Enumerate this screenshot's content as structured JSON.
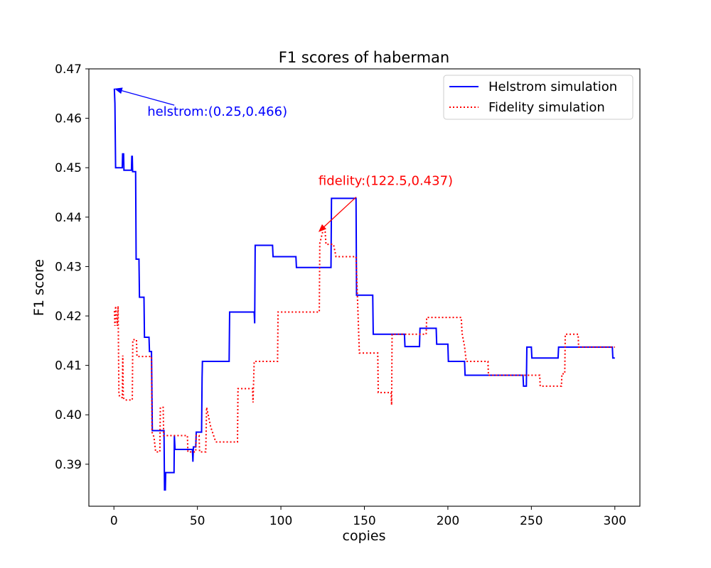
{
  "chart_data": {
    "type": "line",
    "title": "F1 scores of haberman",
    "xlabel": "copies",
    "ylabel": "F1 score",
    "xlim": [
      -15,
      315
    ],
    "ylim": [
      0.3815,
      0.47
    ],
    "xticks": [
      0,
      50,
      100,
      150,
      200,
      250,
      300
    ],
    "yticks": [
      0.39,
      0.4,
      0.41,
      0.42,
      0.43,
      0.44,
      0.45,
      0.46,
      0.47
    ],
    "xtick_labels": [
      "0",
      "50",
      "100",
      "150",
      "200",
      "250",
      "300"
    ],
    "ytick_labels": [
      "0.39",
      "0.40",
      "0.41",
      "0.42",
      "0.43",
      "0.44",
      "0.45",
      "0.46",
      "0.47"
    ],
    "grid": false,
    "legend_position": "top-right",
    "series": [
      {
        "name": "Helstrom simulation",
        "color": "#0000ff",
        "style": "solid",
        "points": [
          [
            0.25,
            0.466
          ],
          [
            0.6,
            0.463
          ],
          [
            1,
            0.45
          ],
          [
            5,
            0.45
          ],
          [
            5.2,
            0.4528
          ],
          [
            5.8,
            0.4528
          ],
          [
            6,
            0.4495
          ],
          [
            10.5,
            0.4495
          ],
          [
            10.7,
            0.4523
          ],
          [
            11,
            0.4523
          ],
          [
            11.2,
            0.4492
          ],
          [
            13,
            0.4492
          ],
          [
            13.3,
            0.4315
          ],
          [
            15,
            0.4315
          ],
          [
            15.3,
            0.4238
          ],
          [
            18,
            0.4238
          ],
          [
            18.3,
            0.4157
          ],
          [
            21,
            0.4157
          ],
          [
            21.3,
            0.4128
          ],
          [
            22.5,
            0.4128
          ],
          [
            23,
            0.3968
          ],
          [
            30,
            0.3968
          ],
          [
            30.3,
            0.3848
          ],
          [
            30.8,
            0.3848
          ],
          [
            31,
            0.3883
          ],
          [
            36,
            0.3883
          ],
          [
            36.2,
            0.3958
          ],
          [
            36.6,
            0.393
          ],
          [
            47,
            0.393
          ],
          [
            47.3,
            0.3905
          ],
          [
            47.6,
            0.3935
          ],
          [
            49,
            0.3935
          ],
          [
            49.3,
            0.3965
          ],
          [
            52.5,
            0.3965
          ],
          [
            52.8,
            0.4075
          ],
          [
            53,
            0.4108
          ],
          [
            69,
            0.4108
          ],
          [
            69.3,
            0.4208
          ],
          [
            84,
            0.4208
          ],
          [
            84.3,
            0.4185
          ],
          [
            84.6,
            0.4343
          ],
          [
            95,
            0.4343
          ],
          [
            95.3,
            0.432
          ],
          [
            109,
            0.432
          ],
          [
            109.3,
            0.4298
          ],
          [
            130,
            0.4298
          ],
          [
            130.3,
            0.4438
          ],
          [
            145,
            0.4438
          ],
          [
            145.3,
            0.4242
          ],
          [
            155,
            0.4242
          ],
          [
            155.3,
            0.4163
          ],
          [
            174,
            0.4163
          ],
          [
            174.3,
            0.4138
          ],
          [
            183,
            0.4138
          ],
          [
            183.3,
            0.4175
          ],
          [
            193,
            0.4175
          ],
          [
            193.3,
            0.4143
          ],
          [
            200,
            0.4143
          ],
          [
            200.3,
            0.4108
          ],
          [
            210,
            0.4108
          ],
          [
            210.3,
            0.408
          ],
          [
            245,
            0.408
          ],
          [
            245.3,
            0.4058
          ],
          [
            247,
            0.4058
          ],
          [
            247.3,
            0.4137
          ],
          [
            250,
            0.4137
          ],
          [
            250.3,
            0.4115
          ],
          [
            266,
            0.4115
          ],
          [
            266.3,
            0.4137
          ],
          [
            298.5,
            0.4137
          ],
          [
            298.8,
            0.4115
          ],
          [
            300,
            0.4115
          ]
        ]
      },
      {
        "name": "Fidelity simulation",
        "color": "#ff0000",
        "style": "dotted",
        "points": [
          [
            0.3,
            0.421
          ],
          [
            0.6,
            0.418
          ],
          [
            1,
            0.422
          ],
          [
            2,
            0.418
          ],
          [
            2.5,
            0.422
          ],
          [
            3,
            0.404
          ],
          [
            4,
            0.4035
          ],
          [
            5,
            0.4035
          ],
          [
            5.3,
            0.412
          ],
          [
            5.6,
            0.4035
          ],
          [
            6.5,
            0.403
          ],
          [
            11,
            0.403
          ],
          [
            11.3,
            0.4152
          ],
          [
            13.5,
            0.4152
          ],
          [
            13.8,
            0.4118
          ],
          [
            22.5,
            0.4118
          ],
          [
            22.8,
            0.3965
          ],
          [
            24,
            0.3955
          ],
          [
            25,
            0.3925
          ],
          [
            27.5,
            0.3925
          ],
          [
            27.8,
            0.4015
          ],
          [
            29.5,
            0.4015
          ],
          [
            29.8,
            0.3958
          ],
          [
            44,
            0.3958
          ],
          [
            44.3,
            0.3925
          ],
          [
            49,
            0.3925
          ],
          [
            49.3,
            0.3958
          ],
          [
            51,
            0.3958
          ],
          [
            51.3,
            0.3925
          ],
          [
            55,
            0.3925
          ],
          [
            55.5,
            0.4015
          ],
          [
            58,
            0.3975
          ],
          [
            61,
            0.3945
          ],
          [
            74,
            0.3945
          ],
          [
            74.3,
            0.4053
          ],
          [
            83,
            0.4053
          ],
          [
            83.3,
            0.4025
          ],
          [
            84,
            0.4108
          ],
          [
            98,
            0.4108
          ],
          [
            98.3,
            0.4208
          ],
          [
            123,
            0.4208
          ],
          [
            123.3,
            0.4347
          ],
          [
            125,
            0.437
          ],
          [
            126.5,
            0.437
          ],
          [
            127,
            0.4345
          ],
          [
            130,
            0.4345
          ],
          [
            131.5,
            0.4345
          ],
          [
            133,
            0.432
          ],
          [
            145,
            0.432
          ],
          [
            147,
            0.4125
          ],
          [
            158,
            0.4125
          ],
          [
            158.3,
            0.4045
          ],
          [
            166,
            0.4045
          ],
          [
            166.3,
            0.402
          ],
          [
            166.6,
            0.4163
          ],
          [
            178,
            0.4163
          ],
          [
            187,
            0.4163
          ],
          [
            187.3,
            0.4197
          ],
          [
            208,
            0.4197
          ],
          [
            208.5,
            0.4165
          ],
          [
            210,
            0.4138
          ],
          [
            211,
            0.4108
          ],
          [
            224,
            0.4108
          ],
          [
            224.3,
            0.408
          ],
          [
            255,
            0.408
          ],
          [
            255.3,
            0.4058
          ],
          [
            268,
            0.4058
          ],
          [
            268.3,
            0.4083
          ],
          [
            270,
            0.4083
          ],
          [
            270.3,
            0.4163
          ],
          [
            278,
            0.4163
          ],
          [
            278.3,
            0.4137
          ],
          [
            300,
            0.4137
          ]
        ]
      }
    ],
    "annotations": [
      {
        "text": "helstrom:(0.25,0.466)",
        "color": "#0000ff",
        "xy": [
          0.25,
          0.466
        ],
        "xytext": [
          20,
          0.4605
        ]
      },
      {
        "text": "fidelity:(122.5,0.437)",
        "color": "#ff0000",
        "xy": [
          122.5,
          0.437
        ],
        "xytext": [
          122.5,
          0.4465
        ]
      }
    ]
  }
}
